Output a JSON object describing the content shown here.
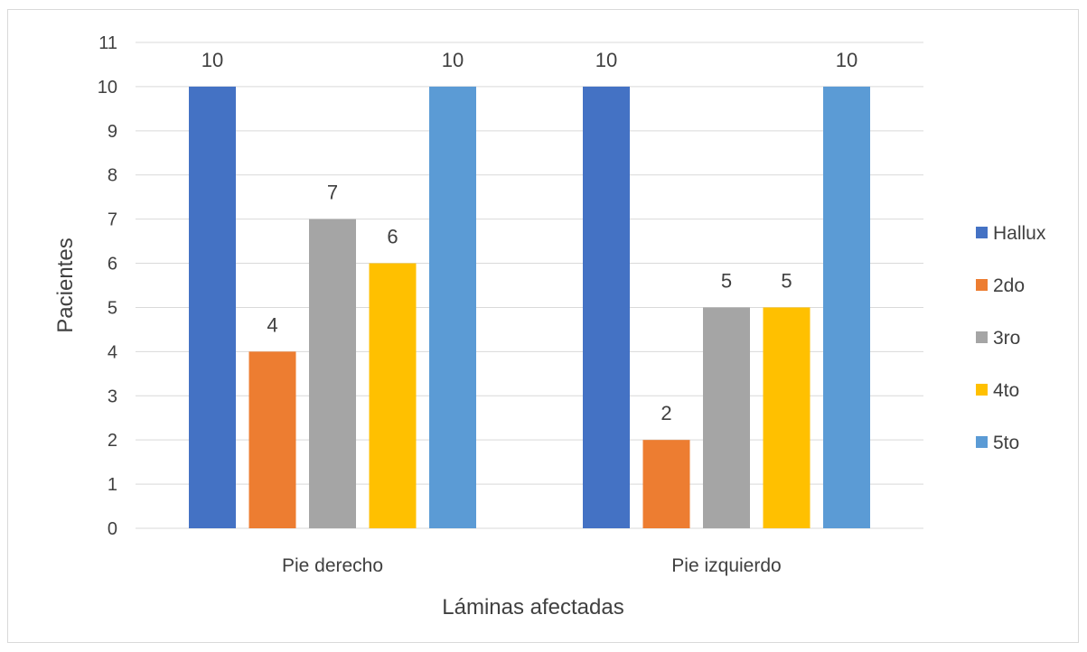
{
  "chart_data": {
    "type": "bar",
    "categories": [
      "Pie derecho",
      "Pie izquierdo"
    ],
    "series": [
      {
        "name": "Hallux",
        "values": [
          10,
          10
        ],
        "color": "#4472C4"
      },
      {
        "name": "2do",
        "values": [
          4,
          2
        ],
        "color": "#ED7D31"
      },
      {
        "name": "3ro",
        "values": [
          7,
          5
        ],
        "color": "#A5A5A5"
      },
      {
        "name": "4to",
        "values": [
          6,
          5
        ],
        "color": "#FFC000"
      },
      {
        "name": "5to",
        "values": [
          10,
          10
        ],
        "color": "#5B9BD5"
      }
    ],
    "xlabel": "Láminas afectadas",
    "ylabel": "Pacientes",
    "ylim": [
      0,
      11
    ],
    "yticks": [
      "0",
      "1",
      "2",
      "3",
      "4",
      "5",
      "6",
      "7",
      "8",
      "9",
      "10",
      "11"
    ],
    "grid": true,
    "legend_position": "right",
    "data_labels": true
  }
}
